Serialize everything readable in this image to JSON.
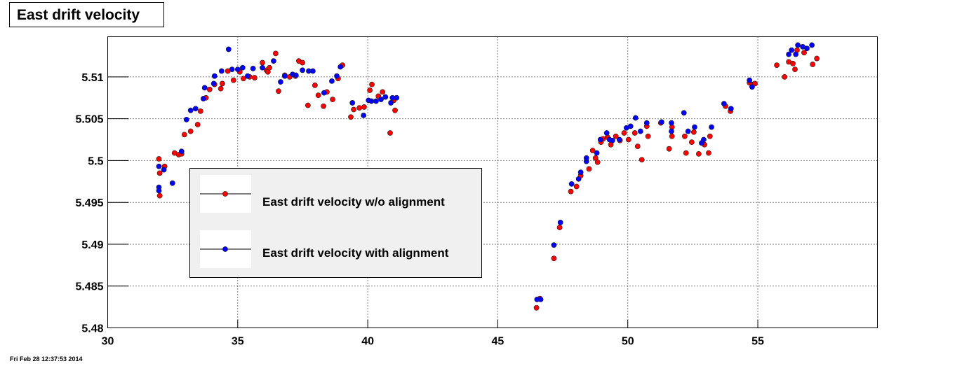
{
  "chart_data": {
    "type": "scatter",
    "title": "East drift velocity",
    "timestamp": "Fri Feb 28 12:37:53 2014",
    "xlim": [
      30,
      59.6
    ],
    "xticks": [
      30,
      35,
      40,
      45,
      50,
      55
    ],
    "ylim": [
      5.48,
      5.5148
    ],
    "yticks": [
      5.48,
      5.485,
      5.49,
      5.495,
      5.5,
      5.505,
      5.51
    ],
    "grid": true,
    "legend": "center-left",
    "series": [
      {
        "name": "East drift velocity w/o alignment",
        "color": "#ff0000",
        "x": [
          31.97,
          32.0,
          32.0,
          32.19,
          32.57,
          32.73,
          32.84,
          32.95,
          33.19,
          33.46,
          33.57,
          33.78,
          33.92,
          34.11,
          34.35,
          34.41,
          34.62,
          34.84,
          35.08,
          35.22,
          35.46,
          35.65,
          35.95,
          36.11,
          36.16,
          36.22,
          36.46,
          36.57,
          36.81,
          37.0,
          37.22,
          37.35,
          37.49,
          37.7,
          37.97,
          38.1,
          38.3,
          38.43,
          38.65,
          38.86,
          39.03,
          39.35,
          39.46,
          39.68,
          39.86,
          40.08,
          40.16,
          40.41,
          40.57,
          40.86,
          41.0,
          41.05,
          46.49,
          46.62,
          47.16,
          47.38,
          47.81,
          48.03,
          48.19,
          48.51,
          48.65,
          48.76,
          48.84,
          48.97,
          49.05,
          49.22,
          49.35,
          49.54,
          49.7,
          49.86,
          50.03,
          50.27,
          50.38,
          50.54,
          50.73,
          50.78,
          51.27,
          51.59,
          51.7,
          51.7,
          52.19,
          52.24,
          52.46,
          52.54,
          52.73,
          52.95,
          53.11,
          53.16,
          53.76,
          53.95,
          54.68,
          54.81,
          54.89,
          55.73,
          56.03,
          56.19,
          56.35,
          56.43,
          56.51,
          56.78,
          57.11,
          57.27
        ],
        "values": [
          5.5002,
          5.4985,
          5.4958,
          5.4993,
          5.5009,
          5.5007,
          5.5008,
          5.5031,
          5.5035,
          5.5043,
          5.5059,
          5.5075,
          5.5085,
          5.5091,
          5.5086,
          5.5092,
          5.5107,
          5.5096,
          5.5106,
          5.5098,
          5.51,
          5.5099,
          5.5117,
          5.5108,
          5.5106,
          5.5111,
          5.5128,
          5.5083,
          5.5102,
          5.51,
          5.5101,
          5.5119,
          5.5117,
          5.5066,
          5.509,
          5.5078,
          5.5065,
          5.5082,
          5.5073,
          5.5098,
          5.5114,
          5.5052,
          5.5061,
          5.5063,
          5.5064,
          5.5084,
          5.5091,
          5.5077,
          5.5082,
          5.5033,
          5.5072,
          5.506,
          5.4824,
          5.4835,
          5.4883,
          5.492,
          5.4963,
          5.4969,
          5.4982,
          5.499,
          5.5012,
          5.5003,
          5.4998,
          5.5022,
          5.5026,
          5.5028,
          5.5019,
          5.5029,
          5.5024,
          5.5033,
          5.5025,
          5.5033,
          5.5017,
          5.5001,
          5.5041,
          5.5029,
          5.5045,
          5.5014,
          5.504,
          5.5029,
          5.5029,
          5.5009,
          5.5022,
          5.5034,
          5.5008,
          5.5019,
          5.5009,
          5.5029,
          5.5065,
          5.5059,
          5.5093,
          5.5091,
          5.5092,
          5.5114,
          5.51,
          5.5118,
          5.5116,
          5.5109,
          5.5132,
          5.5129,
          5.5115,
          5.5122
        ]
      },
      {
        "name": "East drift velocity with alignment",
        "color": "#0000ff",
        "x": [
          31.97,
          31.97,
          31.97,
          32.16,
          32.49,
          32.84,
          33.03,
          33.19,
          33.38,
          33.68,
          33.73,
          34.08,
          34.11,
          34.38,
          34.65,
          34.78,
          35.0,
          35.19,
          35.38,
          35.59,
          35.95,
          36.38,
          36.65,
          36.81,
          37.11,
          37.24,
          37.49,
          37.73,
          37.89,
          38.32,
          38.62,
          38.81,
          38.95,
          39.41,
          39.84,
          40.03,
          40.14,
          40.32,
          40.51,
          40.68,
          40.89,
          40.95,
          41.11,
          46.51,
          46.65,
          47.16,
          47.41,
          47.84,
          48.11,
          48.19,
          48.41,
          48.41,
          48.81,
          48.95,
          49.19,
          49.3,
          49.41,
          49.68,
          49.95,
          50.11,
          50.3,
          50.49,
          50.73,
          51.3,
          51.68,
          51.68,
          52.16,
          52.32,
          52.57,
          52.84,
          52.92,
          53.22,
          53.7,
          53.97,
          54.68,
          54.78,
          56.19,
          56.3,
          56.46,
          56.54,
          56.73,
          56.89,
          57.08
        ],
        "values": [
          5.4968,
          5.4964,
          5.4993,
          5.4989,
          5.4973,
          5.5011,
          5.5049,
          5.506,
          5.5062,
          5.5074,
          5.5087,
          5.5092,
          5.5101,
          5.5107,
          5.5133,
          5.5109,
          5.5109,
          5.5111,
          5.5101,
          5.511,
          5.5111,
          5.5119,
          5.5094,
          5.5101,
          5.5103,
          5.5102,
          5.5108,
          5.5107,
          5.5107,
          5.5081,
          5.5095,
          5.5101,
          5.5112,
          5.5069,
          5.5054,
          5.5072,
          5.5071,
          5.5071,
          5.5073,
          5.5076,
          5.5069,
          5.5075,
          5.5075,
          5.4834,
          5.4834,
          5.4899,
          5.4926,
          5.4972,
          5.4978,
          5.4986,
          5.4999,
          5.5003,
          5.5009,
          5.5025,
          5.5033,
          5.5025,
          5.5024,
          5.5025,
          5.5039,
          5.5041,
          5.5051,
          5.5035,
          5.5045,
          5.5046,
          5.5045,
          5.5035,
          5.5057,
          5.5035,
          5.504,
          5.5021,
          5.5025,
          5.504,
          5.5068,
          5.5062,
          5.5096,
          5.5088,
          5.5127,
          5.5132,
          5.5127,
          5.5138,
          5.5136,
          5.5134,
          5.5138
        ]
      }
    ]
  }
}
